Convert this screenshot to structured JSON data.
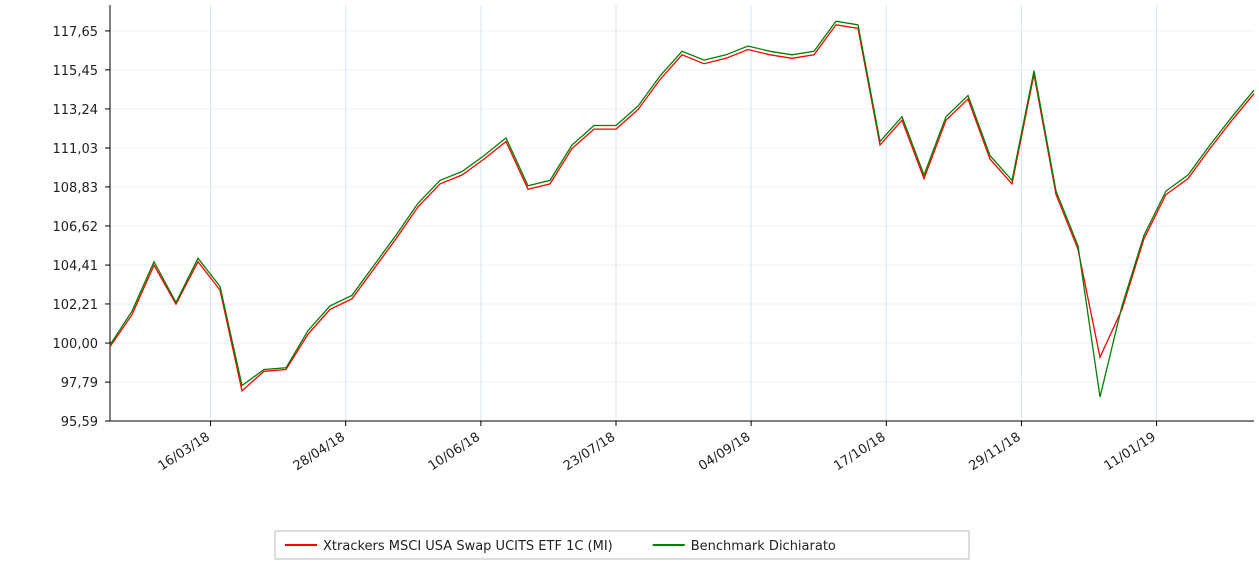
{
  "chart_data": {
    "type": "line",
    "x": [
      "2018-02-12",
      "2018-02-19",
      "2018-02-26",
      "2018-03-05",
      "2018-03-12",
      "2018-03-19",
      "2018-03-26",
      "2018-04-02",
      "2018-04-09",
      "2018-04-16",
      "2018-04-23",
      "2018-04-30",
      "2018-05-07",
      "2018-05-14",
      "2018-05-21",
      "2018-05-28",
      "2018-06-04",
      "2018-06-11",
      "2018-06-18",
      "2018-06-25",
      "2018-07-02",
      "2018-07-09",
      "2018-07-16",
      "2018-07-23",
      "2018-07-30",
      "2018-08-06",
      "2018-08-13",
      "2018-08-20",
      "2018-08-27",
      "2018-09-03",
      "2018-09-10",
      "2018-09-17",
      "2018-09-24",
      "2018-10-01",
      "2018-10-08",
      "2018-10-15",
      "2018-10-22",
      "2018-10-29",
      "2018-11-05",
      "2018-11-12",
      "2018-11-19",
      "2018-11-26",
      "2018-12-03",
      "2018-12-10",
      "2018-12-17",
      "2018-12-24",
      "2018-12-31",
      "2019-01-07",
      "2019-01-14",
      "2019-01-21",
      "2019-01-28",
      "2019-02-04",
      "2019-02-11"
    ],
    "series": [
      {
        "name": "Xtrackers MSCI USA Swap UCITS ETF 1C (MI)",
        "color": "#ff0000",
        "values": [
          99.8,
          101.6,
          104.4,
          102.2,
          104.6,
          103.0,
          97.3,
          98.4,
          98.5,
          100.5,
          101.9,
          102.5,
          104.2,
          105.9,
          107.7,
          109.0,
          109.5,
          110.4,
          111.4,
          108.7,
          109.0,
          111.0,
          112.1,
          112.1,
          113.2,
          114.9,
          116.3,
          115.8,
          116.1,
          116.6,
          116.3,
          116.1,
          116.3,
          118.0,
          117.8,
          111.2,
          112.6,
          109.3,
          112.6,
          113.8,
          110.4,
          109.0,
          115.2,
          108.4,
          105.3,
          99.2,
          101.9,
          105.9,
          108.4,
          109.3,
          111.0,
          112.6,
          114.1
        ]
      },
      {
        "name": "Benchmark Dichiarato",
        "color": "#008000",
        "values": [
          99.9,
          101.8,
          104.6,
          102.3,
          104.8,
          103.2,
          97.6,
          98.5,
          98.6,
          100.7,
          102.1,
          102.7,
          104.4,
          106.1,
          107.9,
          109.2,
          109.7,
          110.6,
          111.6,
          108.9,
          109.2,
          111.2,
          112.3,
          112.3,
          113.4,
          115.1,
          116.5,
          116.0,
          116.3,
          116.8,
          116.5,
          116.3,
          116.5,
          118.2,
          118.0,
          111.4,
          112.8,
          109.5,
          112.8,
          114.0,
          110.6,
          109.2,
          115.4,
          108.6,
          105.5,
          96.95,
          102.1,
          106.1,
          108.6,
          109.5,
          111.2,
          112.8,
          114.3
        ]
      }
    ],
    "xlim": [
      "2018-02-12",
      "2019-02-11"
    ],
    "xticks": [
      {
        "value": "2018-03-16",
        "label": "16/03/18"
      },
      {
        "value": "2018-04-28",
        "label": "28/04/18"
      },
      {
        "value": "2018-06-10",
        "label": "10/06/18"
      },
      {
        "value": "2018-07-23",
        "label": "23/07/18"
      },
      {
        "value": "2018-09-04",
        "label": "04/09/18"
      },
      {
        "value": "2018-10-17",
        "label": "17/10/18"
      },
      {
        "value": "2018-11-29",
        "label": "29/11/18"
      },
      {
        "value": "2019-01-11",
        "label": "11/01/19"
      }
    ],
    "ylim": [
      95.59,
      119.4
    ],
    "yticks": [
      {
        "value": 95.59,
        "label": "95,59"
      },
      {
        "value": 97.79,
        "label": "97,79"
      },
      {
        "value": 100,
        "label": "100,00"
      },
      {
        "value": 102.21,
        "label": "102,21"
      },
      {
        "value": 104.41,
        "label": "104,41"
      },
      {
        "value": 106.62,
        "label": "106,62"
      },
      {
        "value": 108.83,
        "label": "108,83"
      },
      {
        "value": 111.03,
        "label": "111,03"
      },
      {
        "value": 113.24,
        "label": "113,24"
      },
      {
        "value": 115.45,
        "label": "115,45"
      },
      {
        "value": 117.65,
        "label": "117,65"
      }
    ],
    "grid": true
  }
}
